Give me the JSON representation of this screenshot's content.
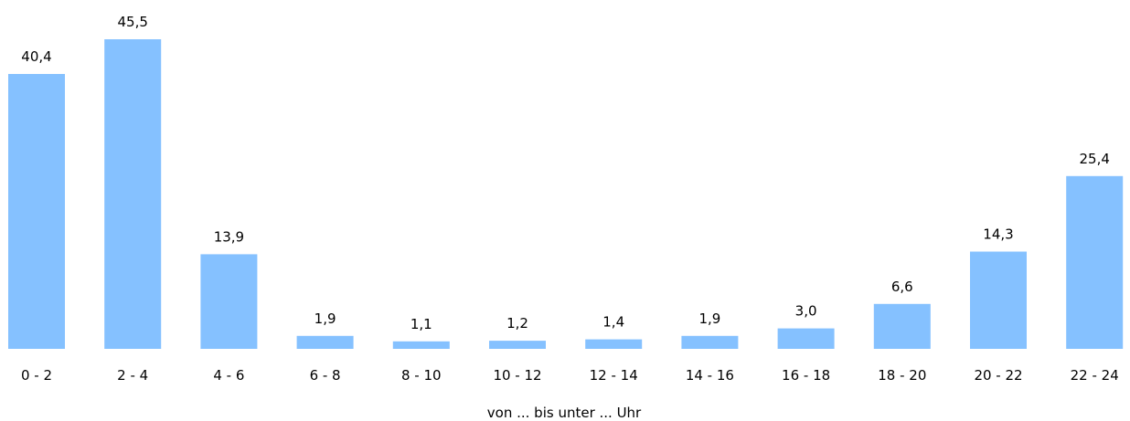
{
  "chart_data": {
    "type": "bar",
    "categories": [
      "0 - 2",
      "2 - 4",
      "4 - 6",
      "6 - 8",
      "8 - 10",
      "10 - 12",
      "12 - 14",
      "14 - 16",
      "16 - 18",
      "18 - 20",
      "20 - 22",
      "22 - 24"
    ],
    "values": [
      40.4,
      45.5,
      13.9,
      1.9,
      1.1,
      1.2,
      1.4,
      1.9,
      3.0,
      6.6,
      14.3,
      25.4
    ],
    "value_labels": [
      "40,4",
      "45,5",
      "13,9",
      "1,9",
      "1,1",
      "1,2",
      "1,4",
      "1,9",
      "3,0",
      "6,6",
      "14,3",
      "25,4"
    ],
    "title": "",
    "xlabel": "von ... bis unter ... Uhr",
    "ylabel": "",
    "ylim": [
      0,
      45.5
    ],
    "grid": false,
    "bar_color": "#85c1ff"
  }
}
